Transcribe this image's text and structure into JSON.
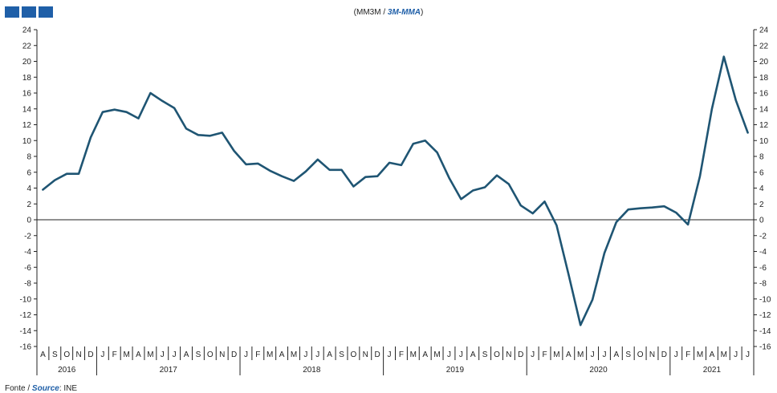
{
  "header": {
    "unit_pt": "(MM3M",
    "separator": "/",
    "unit_en": "3M-MMA",
    "close_paren": ")"
  },
  "source": {
    "label_pt": "Fonte",
    "separator": "/",
    "label_en": "Source",
    "colon": ":",
    "value": "INE"
  },
  "colors": {
    "line": "#1f5573",
    "brand": "#1f5fa8",
    "axis": "#222222"
  },
  "chart_data": {
    "type": "line",
    "title": "",
    "xlabel": "",
    "ylabel": "",
    "ylim": [
      -16,
      24
    ],
    "yticks": [
      24,
      22,
      20,
      18,
      16,
      14,
      12,
      10,
      8,
      6,
      4,
      2,
      0,
      -2,
      -4,
      -6,
      -8,
      -10,
      -12,
      -14,
      -16
    ],
    "grid": false,
    "month_labels": [
      "A",
      "S",
      "O",
      "N",
      "D",
      "J",
      "F",
      "M",
      "A",
      "M",
      "J",
      "J",
      "A",
      "S",
      "O",
      "N",
      "D",
      "J",
      "F",
      "M",
      "A",
      "M",
      "J",
      "J",
      "A",
      "S",
      "O",
      "N",
      "D",
      "J",
      "F",
      "M",
      "A",
      "M",
      "J",
      "J",
      "A",
      "S",
      "O",
      "N",
      "D",
      "J",
      "F",
      "M",
      "A",
      "M",
      "J",
      "J",
      "A",
      "S",
      "O",
      "N",
      "D",
      "J",
      "F",
      "M",
      "A",
      "M",
      "J",
      "J"
    ],
    "years": [
      {
        "label": "2016",
        "start": 0,
        "end": 4
      },
      {
        "label": "2017",
        "start": 5,
        "end": 16
      },
      {
        "label": "2018",
        "start": 17,
        "end": 28
      },
      {
        "label": "2019",
        "start": 29,
        "end": 40
      },
      {
        "label": "2020",
        "start": 41,
        "end": 52
      },
      {
        "label": "2021",
        "start": 53,
        "end": 59
      }
    ],
    "series": [
      {
        "values": [
          3.8,
          5.0,
          5.8,
          5.8,
          10.4,
          13.6,
          13.9,
          13.6,
          12.8,
          16.0,
          15.0,
          14.1,
          11.5,
          10.7,
          10.6,
          11.0,
          8.7,
          7.0,
          7.1,
          6.2,
          5.5,
          4.9,
          6.1,
          7.6,
          6.3,
          6.3,
          4.2,
          5.4,
          5.5,
          7.2,
          6.9,
          9.6,
          10.0,
          8.5,
          5.3,
          2.6,
          3.7,
          4.1,
          5.6,
          4.5,
          1.8,
          0.8,
          2.3,
          -0.7,
          -6.9,
          -13.3,
          -10.1,
          -4.2,
          -0.3,
          1.3,
          1.45,
          1.55,
          1.7,
          0.9,
          -0.6,
          5.5,
          14.0,
          20.6,
          15.1,
          11.0
        ]
      }
    ]
  }
}
